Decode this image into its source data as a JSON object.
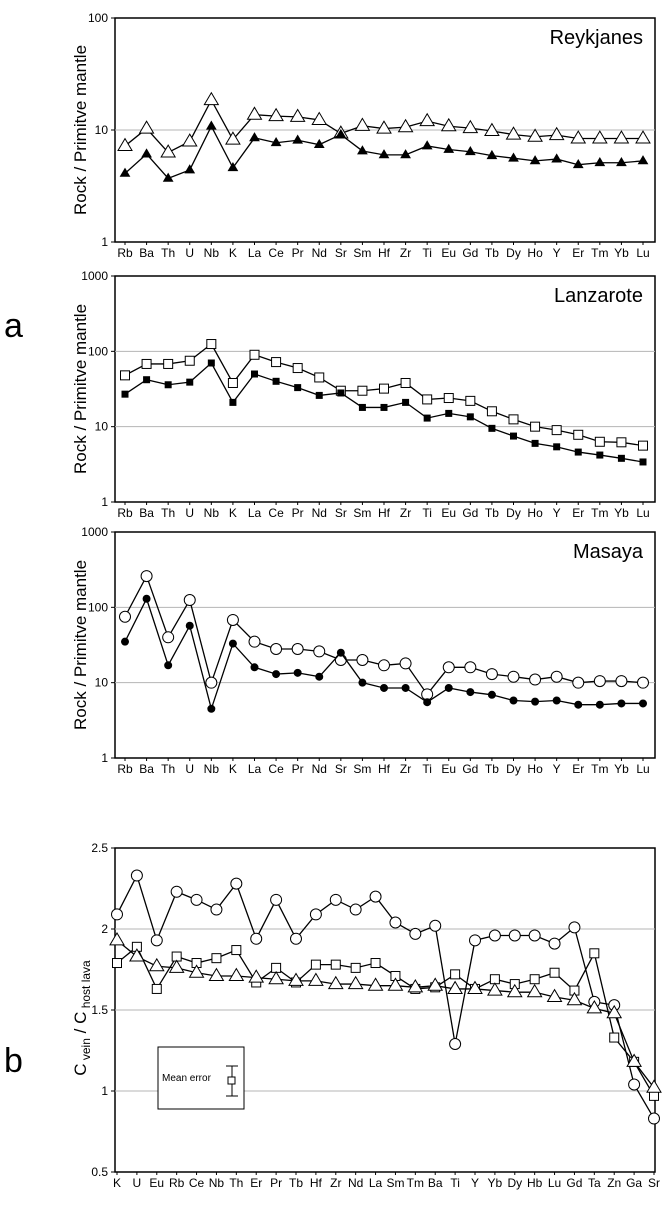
{
  "figure": {
    "panel_labels": [
      "a",
      "b"
    ],
    "legend_label": "Mean error"
  },
  "chart_data": [
    {
      "type": "line",
      "scale": "log",
      "title": "Reykjanes",
      "ylabel": "Rock / Primitve mantle",
      "ylim": [
        1,
        100
      ],
      "yticks": [
        "100",
        "10",
        "1"
      ],
      "categories": [
        "Rb",
        "Ba",
        "Th",
        "U",
        "Nb",
        "K",
        "La",
        "Ce",
        "Pr",
        "Nd",
        "Sr",
        "Sm",
        "Hf",
        "Zr",
        "Ti",
        "Eu",
        "Gd",
        "Tb",
        "Dy",
        "Ho",
        "Y",
        "Er",
        "Tm",
        "Yb",
        "Lu"
      ],
      "series": [
        {
          "marker": "triangle-open",
          "values": [
            7.2,
            10.3,
            6.3,
            7.9,
            18.5,
            8.2,
            13.7,
            13.3,
            13.1,
            12.3,
            9.3,
            10.9,
            10.3,
            10.6,
            12.0,
            10.8,
            10.4,
            9.8,
            9.1,
            8.7,
            9.0,
            8.4,
            8.4,
            8.4,
            8.4
          ]
        },
        {
          "marker": "triangle-filled",
          "values": [
            4.1,
            6.1,
            3.7,
            4.4,
            10.8,
            4.6,
            8.5,
            7.7,
            8.1,
            7.4,
            9.1,
            6.5,
            6.0,
            6.0,
            7.2,
            6.7,
            6.4,
            5.9,
            5.6,
            5.3,
            5.5,
            4.9,
            5.1,
            5.1,
            5.3
          ]
        }
      ]
    },
    {
      "type": "line",
      "scale": "log",
      "title": "Lanzarote",
      "ylabel": "Rock / Primitve mantle",
      "ylim": [
        1,
        1000
      ],
      "yticks": [
        "1000",
        "100",
        "10",
        "1"
      ],
      "categories": [
        "Rb",
        "Ba",
        "Th",
        "U",
        "Nb",
        "K",
        "La",
        "Ce",
        "Pr",
        "Nd",
        "Sr",
        "Sm",
        "Hf",
        "Zr",
        "Ti",
        "Eu",
        "Gd",
        "Tb",
        "Dy",
        "Ho",
        "Y",
        "Er",
        "Tm",
        "Yb",
        "Lu"
      ],
      "series": [
        {
          "marker": "square-open",
          "values": [
            48,
            68,
            68,
            75,
            125,
            38,
            90,
            72,
            60,
            45,
            30,
            30,
            32,
            38,
            23,
            24,
            22,
            16,
            12.5,
            10,
            9,
            7.8,
            6.3,
            6.2,
            5.6
          ]
        },
        {
          "marker": "square-filled",
          "values": [
            27,
            42,
            36,
            39,
            70,
            21,
            50,
            40,
            33,
            26,
            28,
            18,
            18,
            21,
            13,
            15,
            13.5,
            9.5,
            7.5,
            6,
            5.4,
            4.6,
            4.2,
            3.8,
            3.4
          ]
        }
      ]
    },
    {
      "type": "line",
      "scale": "log",
      "title": "Masaya",
      "ylabel": "Rock / Primitve mantle",
      "ylim": [
        1,
        1000
      ],
      "yticks": [
        "1000",
        "100",
        "10",
        "1"
      ],
      "categories": [
        "Rb",
        "Ba",
        "Th",
        "U",
        "Nb",
        "K",
        "La",
        "Ce",
        "Pr",
        "Nd",
        "Sr",
        "Sm",
        "Hf",
        "Zr",
        "Ti",
        "Eu",
        "Gd",
        "Tb",
        "Dy",
        "Ho",
        "Y",
        "Er",
        "Tm",
        "Yb",
        "Lu"
      ],
      "series": [
        {
          "marker": "circle-open",
          "values": [
            75,
            260,
            40,
            125,
            10,
            68,
            35,
            28,
            28,
            26,
            20,
            20,
            17,
            18,
            7,
            16,
            16,
            13,
            12,
            11,
            12,
            10,
            10.5,
            10.5,
            10
          ]
        },
        {
          "marker": "circle-filled",
          "values": [
            35,
            130,
            17,
            57,
            4.5,
            33,
            16,
            13,
            13.5,
            12,
            25,
            10,
            8.5,
            8.5,
            5.5,
            8.5,
            7.5,
            6.9,
            5.8,
            5.6,
            5.8,
            5.1,
            5.1,
            5.3,
            5.3
          ]
        }
      ]
    },
    {
      "type": "line",
      "scale": "linear",
      "ylabel_main": "C",
      "ylabel_sub1": "vein",
      "ylabel_mid": "/ C",
      "ylabel_sub2": "host lava",
      "ylim": [
        0.5,
        2.5
      ],
      "yticks": [
        "2.5",
        "2",
        "1.5",
        "1",
        "0.5"
      ],
      "categories": [
        "K",
        "U",
        "Eu",
        "Rb",
        "Ce",
        "Nb",
        "Th",
        "Er",
        "Pr",
        "Tb",
        "Hf",
        "Zr",
        "Nd",
        "La",
        "Sm",
        "Tm",
        "Ba",
        "Ti",
        "Y",
        "Yb",
        "Dy",
        "Hb",
        "Lu",
        "Gd",
        "Ta",
        "Zn",
        "Ga",
        "Sr"
      ],
      "series": [
        {
          "marker": "circle-open",
          "values": [
            2.09,
            2.33,
            1.93,
            2.23,
            2.18,
            2.12,
            2.28,
            1.94,
            2.18,
            1.94,
            2.09,
            2.18,
            2.12,
            2.2,
            2.04,
            1.97,
            2.02,
            1.29,
            1.93,
            1.96,
            1.96,
            1.96,
            1.91,
            2.01,
            1.55,
            1.53,
            1.04,
            0.83
          ]
        },
        {
          "marker": "square-open",
          "values": [
            1.79,
            1.89,
            1.63,
            1.83,
            1.79,
            1.82,
            1.87,
            1.67,
            1.76,
            1.67,
            1.78,
            1.78,
            1.76,
            1.79,
            1.71,
            1.63,
            1.64,
            1.72,
            1.63,
            1.69,
            1.66,
            1.69,
            1.73,
            1.62,
            1.85,
            1.33,
            1.18,
            0.97
          ]
        },
        {
          "marker": "triangle-open",
          "values": [
            1.93,
            1.83,
            1.77,
            1.76,
            1.73,
            1.71,
            1.71,
            1.7,
            1.69,
            1.68,
            1.68,
            1.66,
            1.66,
            1.65,
            1.65,
            1.64,
            1.65,
            1.63,
            1.63,
            1.62,
            1.61,
            1.61,
            1.58,
            1.56,
            1.51,
            1.48,
            1.18,
            1.02
          ]
        }
      ]
    }
  ]
}
